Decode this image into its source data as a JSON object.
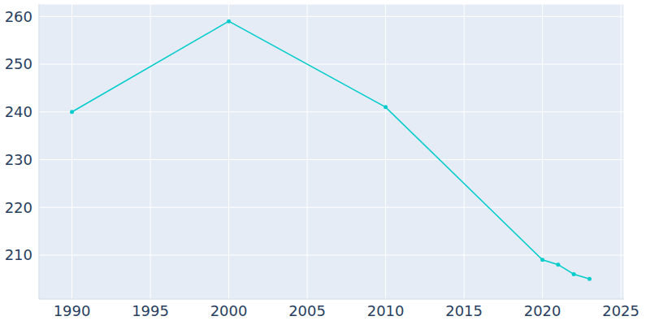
{
  "chart_data": {
    "type": "line",
    "x": [
      1990,
      2000,
      2010,
      2020,
      2021,
      2022,
      2023
    ],
    "values": [
      240,
      259,
      241,
      209,
      208,
      206,
      205
    ],
    "color": "#00cccc",
    "marker": "circle",
    "xlim": [
      1987.9,
      2025.2
    ],
    "xticks": [
      1990,
      1995,
      2000,
      2005,
      2010,
      2015,
      2020,
      2025
    ],
    "ylim": [
      200.8,
      262.6
    ],
    "yticks": [
      210,
      220,
      230,
      240,
      250,
      260
    ],
    "grid": true
  }
}
